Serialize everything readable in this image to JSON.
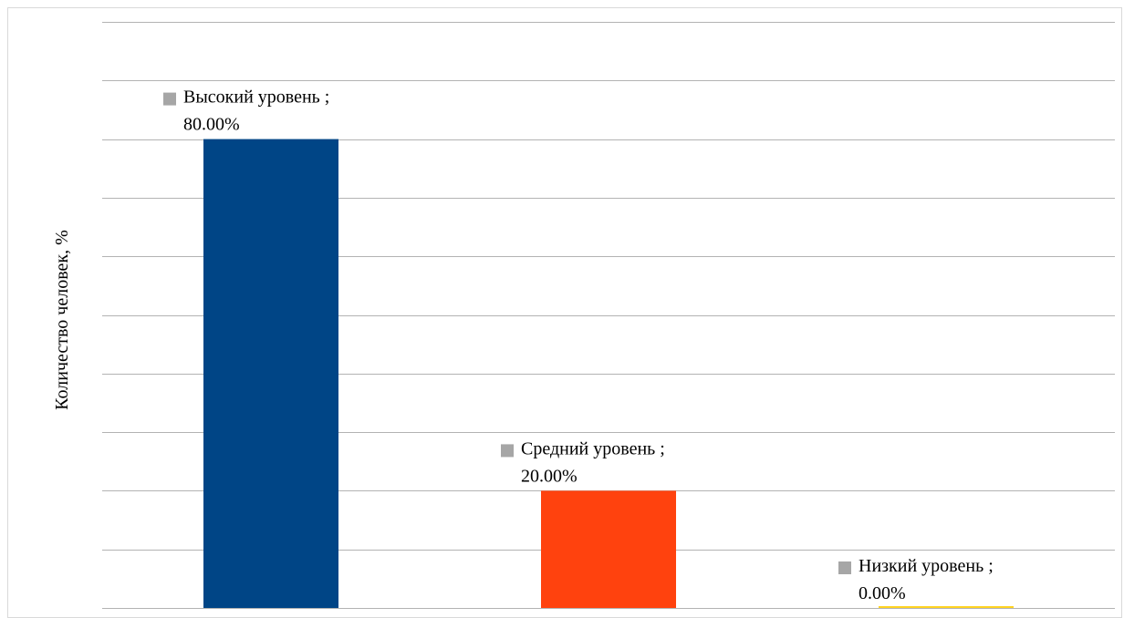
{
  "chart_data": {
    "type": "bar",
    "title": "",
    "xlabel": "",
    "ylabel": "Количество человек, %",
    "ylim": [
      0,
      1
    ],
    "grid": true,
    "categories": [
      "Высокий уровень",
      "Средний уровень",
      "Низкий уровень"
    ],
    "values": [
      0.8,
      0.2,
      0.0
    ],
    "data_labels": [
      {
        "line1": "Высокий уровень ;",
        "line2": "80.00%"
      },
      {
        "line1": "Средний уровень ;",
        "line2": "20.00%"
      },
      {
        "line1": "Низкий уровень ;",
        "line2": "0.00%"
      }
    ],
    "colors": [
      "#004586",
      "#ff420e",
      "#ffd320"
    ],
    "label_marker_color": "#a6a6a6",
    "gridline_color": "#b3b3b3"
  }
}
